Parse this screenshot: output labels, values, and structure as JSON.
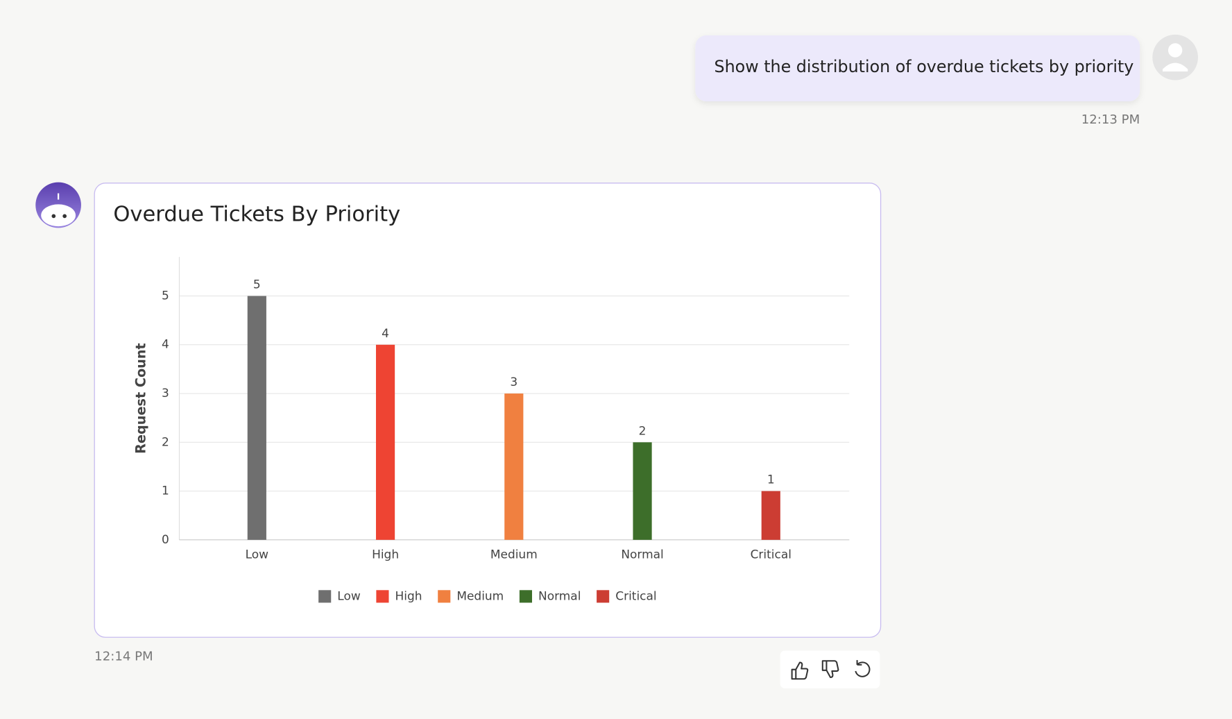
{
  "user_message": {
    "text": "Show the distribution of overdue tickets by priority",
    "time": "12:13 PM"
  },
  "bot_message": {
    "time": "12:14 PM"
  },
  "chart_data": {
    "type": "bar",
    "title": "Overdue Tickets By Priority",
    "y_label": "Request Count",
    "categories": [
      "Low",
      "High",
      "Medium",
      "Normal",
      "Critical"
    ],
    "values": [
      5,
      4,
      3,
      2,
      1
    ],
    "colors": [
      "#6f6f6f",
      "#ee4433",
      "#f08040",
      "#3d6e2a",
      "#cc3d33"
    ],
    "ylim": [
      0,
      5.8
    ],
    "yticks": [
      0,
      1,
      2,
      3,
      4,
      5
    ],
    "grid": true,
    "legend": "bottom"
  }
}
